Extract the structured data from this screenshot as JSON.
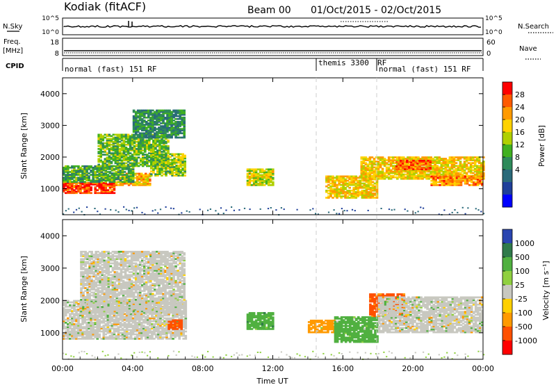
{
  "header": {
    "station": "Kodiak (fitACF)",
    "beam": "Beam 00",
    "date_range": "01/Oct/2015 - 02/Oct/2015"
  },
  "strips": {
    "nsky_label": "N.Sky",
    "nsky_ticks": [
      "10^5",
      "10^0"
    ],
    "nsearch_label": "N.Search",
    "nsearch_ticks": [
      "10^5",
      "10^0"
    ],
    "freq_label": "Freq.",
    "freq_unit": "[MHz]",
    "freq_ticks": [
      "18",
      "8"
    ],
    "nave_label": "Nave",
    "nave_ticks": [
      "60",
      "0"
    ],
    "cpid_label": "CPID",
    "cpid_segments": [
      {
        "label": "normal (fast) 151 RF",
        "start_h": 0,
        "end_h": 14.5
      },
      {
        "label": "themis 3300",
        "start_h": 14.5,
        "end_h": 17.9
      },
      {
        "label": "RF",
        "start_h": 17.9,
        "end_h": 18.05
      },
      {
        "label": "normal (fast) 151 RF",
        "start_h": 18.05,
        "end_h": 24
      }
    ]
  },
  "power_colorbar": {
    "label": "Power [dB]",
    "ticks": [
      "28",
      "24",
      "20",
      "16",
      "12",
      "8",
      "4"
    ],
    "colors": [
      "#ff0000",
      "#ff5a00",
      "#ff9a00",
      "#ffd200",
      "#b0d000",
      "#40b020",
      "#2e8a5a",
      "#2a6a7a",
      "#1f3f9a",
      "#0000ff"
    ]
  },
  "velocity_colorbar": {
    "label": "Velocity [m s⁻¹]",
    "ticks": [
      "1000",
      "500",
      "100",
      "25",
      "-25",
      "-100",
      "-500",
      "-1000"
    ],
    "colors": [
      "#2a45b0",
      "#2f7a4a",
      "#50b040",
      "#90d040",
      "#c8c8c0",
      "#ffd000",
      "#ff9a00",
      "#ff5000",
      "#ff0000"
    ]
  },
  "chart_data": [
    {
      "type": "heatmap",
      "title": "",
      "xlabel": "Time UT",
      "ylabel": "Slant Range [km]",
      "xlim": [
        0,
        24
      ],
      "ylim": [
        180,
        4500
      ],
      "xticks": [
        "00:00",
        "04:00",
        "08:00",
        "12:00",
        "16:00",
        "20:00",
        "00:00"
      ],
      "yticks": [
        1000,
        2000,
        3000,
        4000
      ],
      "colorbar": "Power [dB]",
      "regions": [
        {
          "t0": 0.0,
          "t1": 3.0,
          "r0": 850,
          "r1": 1200,
          "value": 28
        },
        {
          "t0": 3.0,
          "t1": 5.0,
          "r0": 1100,
          "r1": 1500,
          "value": 22
        },
        {
          "t0": 5.0,
          "t1": 7.0,
          "r0": 1400,
          "r1": 2100,
          "value": 16
        },
        {
          "t0": 0.0,
          "t1": 4.0,
          "r0": 1200,
          "r1": 1700,
          "value": 12
        },
        {
          "t0": 2.0,
          "t1": 6.0,
          "r0": 1700,
          "r1": 2700,
          "value": 14
        },
        {
          "t0": 4.0,
          "t1": 7.0,
          "r0": 2600,
          "r1": 3500,
          "value": 10
        },
        {
          "t0": 10.5,
          "t1": 12.0,
          "r0": 1100,
          "r1": 1600,
          "value": 18
        },
        {
          "t0": 15.0,
          "t1": 18.0,
          "r0": 700,
          "r1": 1400,
          "value": 20
        },
        {
          "t0": 17.0,
          "t1": 24.0,
          "r0": 1300,
          "r1": 2000,
          "value": 20
        },
        {
          "t0": 19.0,
          "t1": 21.0,
          "r0": 1600,
          "r1": 1900,
          "value": 26
        },
        {
          "t0": 21.0,
          "t1": 24.0,
          "r0": 1100,
          "r1": 1400,
          "value": 24
        }
      ]
    },
    {
      "type": "heatmap",
      "title": "",
      "xlabel": "Time UT",
      "ylabel": "Slant Range [km]",
      "xlim": [
        0,
        24
      ],
      "ylim": [
        180,
        4500
      ],
      "xticks": [
        "00:00",
        "04:00",
        "08:00",
        "12:00",
        "16:00",
        "20:00",
        "00:00"
      ],
      "yticks": [
        1000,
        2000,
        3000,
        4000
      ],
      "colorbar": "Velocity [m s⁻¹]",
      "regions": [
        {
          "t0": 0.0,
          "t1": 7.0,
          "r0": 800,
          "r1": 2000,
          "value": 0
        },
        {
          "t0": 1.0,
          "t1": 7.0,
          "r0": 1600,
          "r1": 3500,
          "value": 0
        },
        {
          "t0": 6.0,
          "t1": 6.8,
          "r0": 1100,
          "r1": 1400,
          "value": -400
        },
        {
          "t0": 10.5,
          "t1": 12.0,
          "r0": 1100,
          "r1": 1600,
          "value": 200
        },
        {
          "t0": 14.0,
          "t1": 15.5,
          "r0": 1000,
          "r1": 1400,
          "value": -100
        },
        {
          "t0": 15.5,
          "t1": 18.0,
          "r0": 700,
          "r1": 1500,
          "value": 150
        },
        {
          "t0": 17.5,
          "t1": 19.5,
          "r0": 1500,
          "r1": 2200,
          "value": -300
        },
        {
          "t0": 18.0,
          "t1": 24.0,
          "r0": 1000,
          "r1": 2100,
          "value": 0
        }
      ]
    }
  ]
}
